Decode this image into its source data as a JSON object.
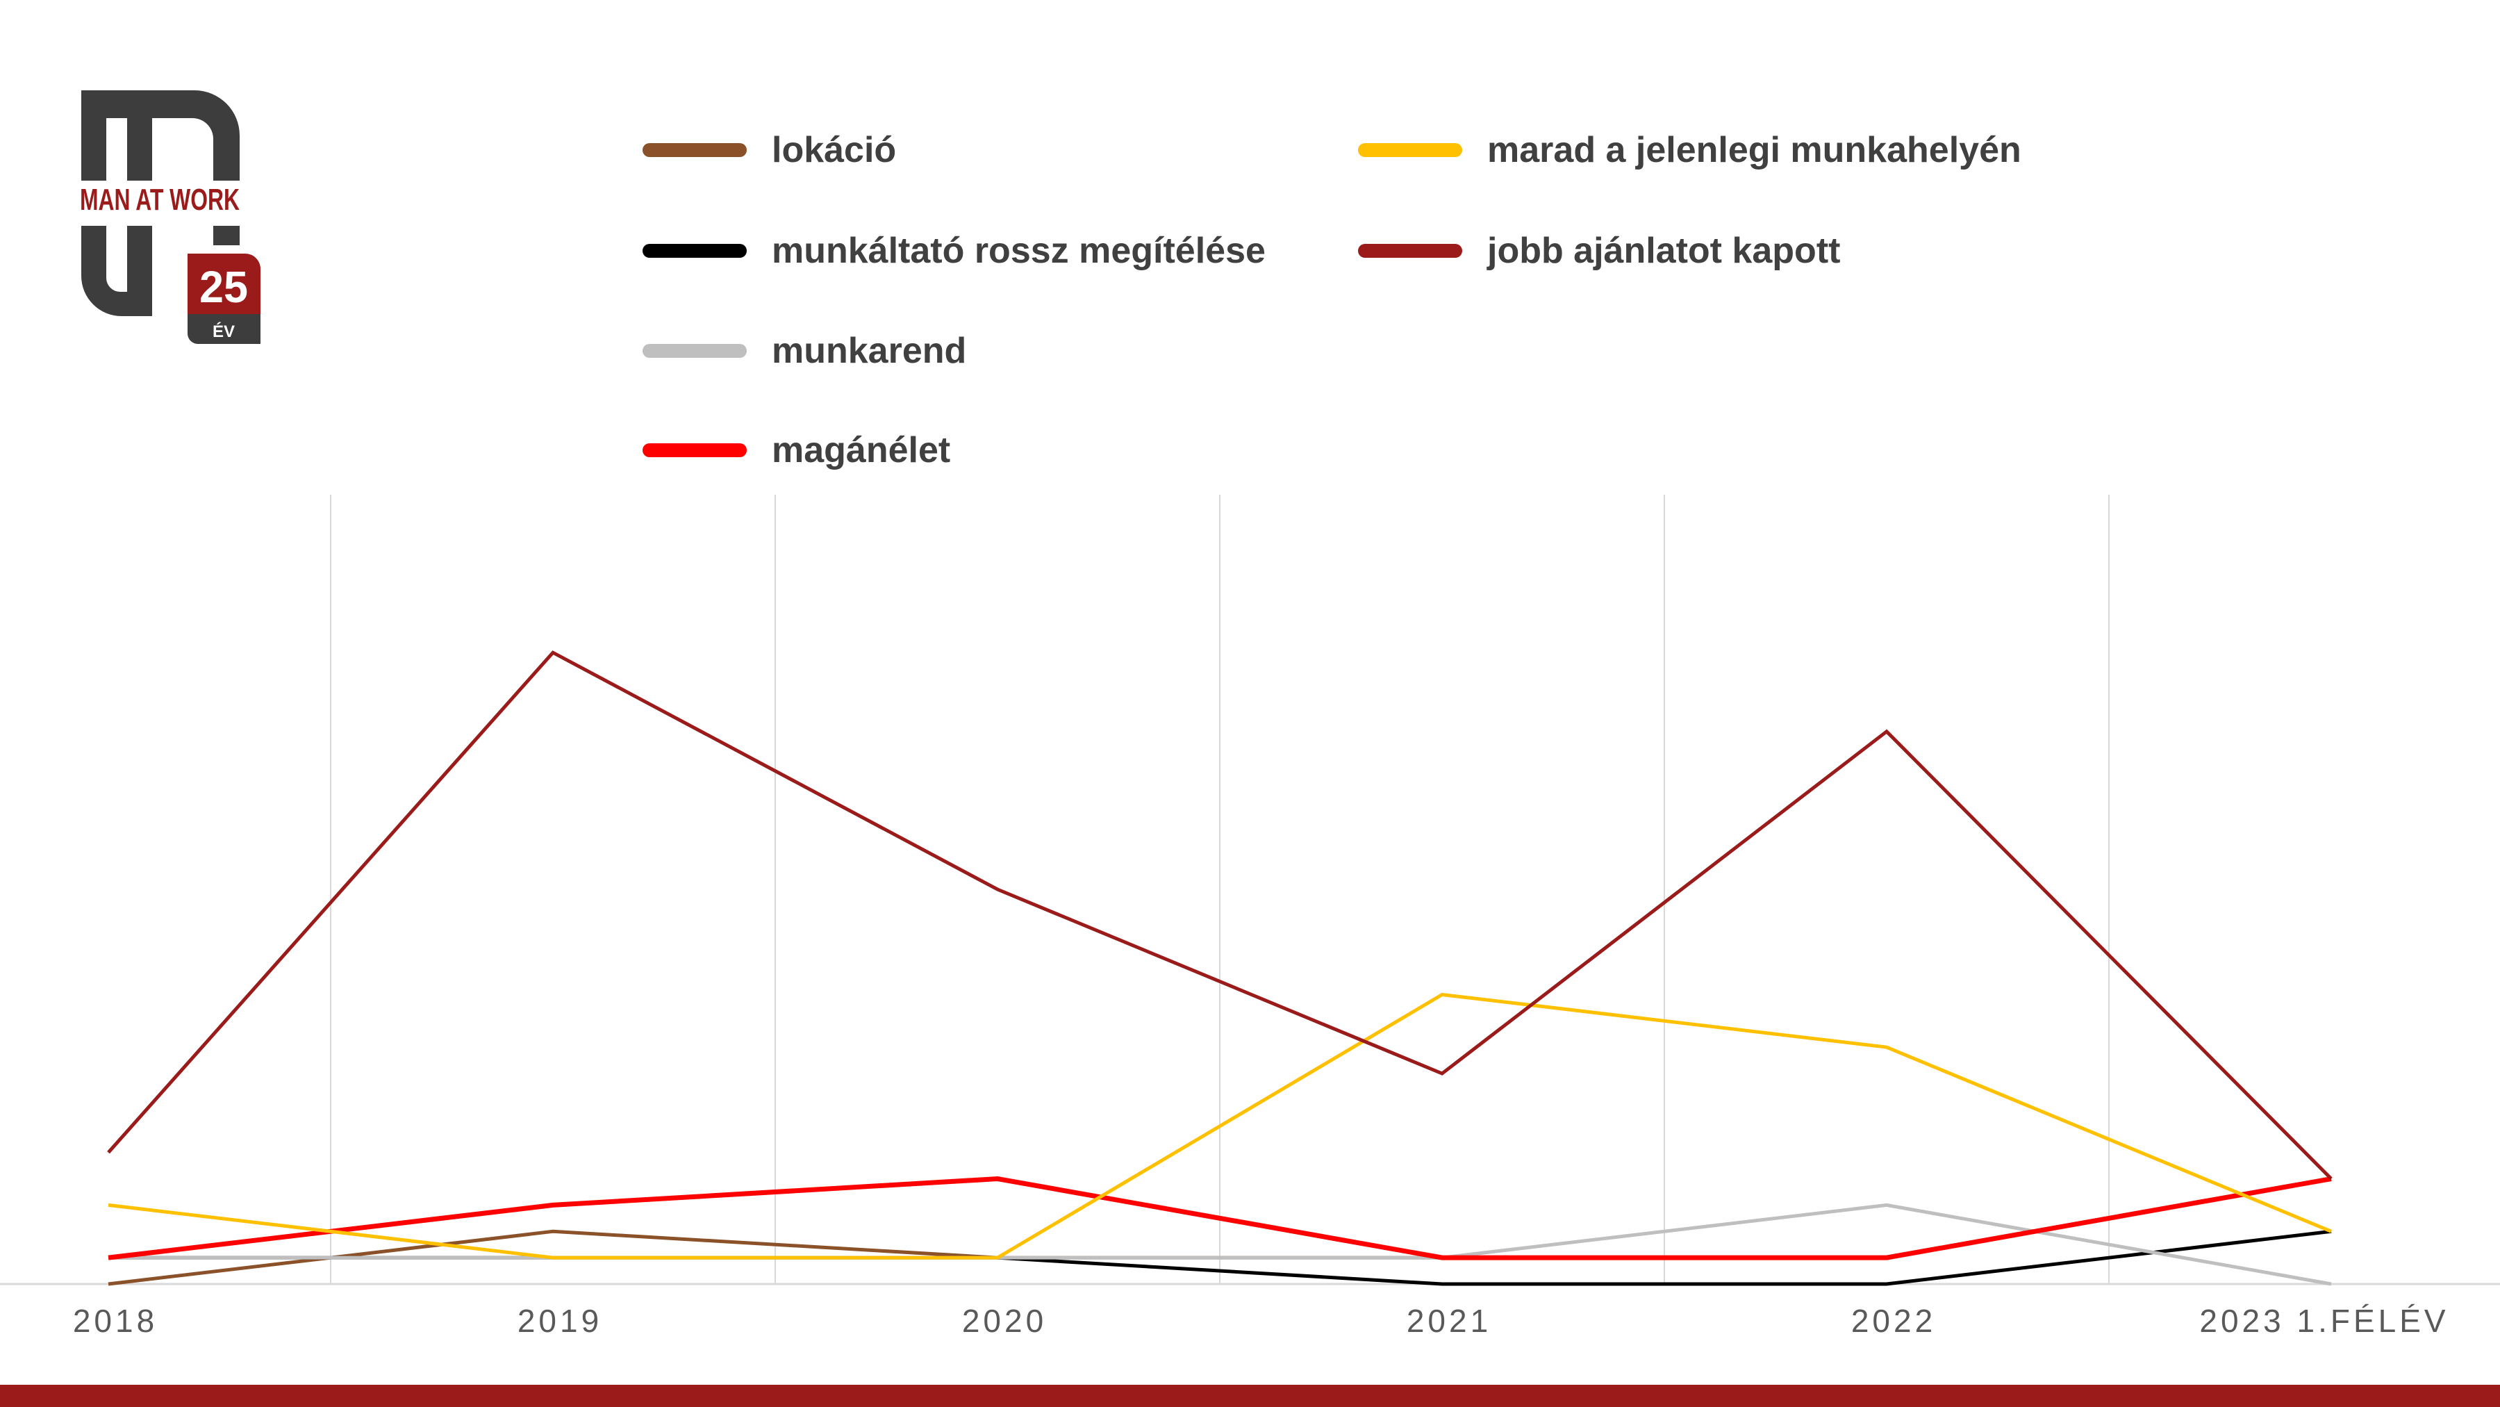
{
  "logo": {
    "text": "MAN AT WORK",
    "badge_number": "25",
    "badge_unit": "ÉV"
  },
  "chart_data": {
    "type": "line",
    "title": "",
    "xlabel": "",
    "ylabel": "",
    "categories": [
      "2018",
      "2019",
      "2020",
      "2021",
      "2022",
      "2023 1.FÉLÉV"
    ],
    "ylim": [
      0,
      30
    ],
    "grid": "vertical",
    "legend_placement": "top",
    "series": [
      {
        "name": "lokáció",
        "color": "#8B5128",
        "values": [
          0,
          2,
          1,
          1,
          1,
          null
        ]
      },
      {
        "name": "munkáltató rossz megítélése",
        "color": "#000000",
        "values": [
          1,
          1,
          1,
          0,
          0,
          2
        ]
      },
      {
        "name": "munkarend",
        "color": "#BFBFBF",
        "values": [
          1,
          1,
          1,
          1,
          3,
          0
        ]
      },
      {
        "name": "magánélet",
        "color": "#FF0000",
        "values": [
          1,
          3,
          4,
          1,
          1,
          4
        ]
      },
      {
        "name": "marad a jelenlegi munkahelyén",
        "color": "#FFC000",
        "values": [
          3,
          1,
          1,
          11,
          9,
          2
        ]
      },
      {
        "name": "jobb ajánlatot kapott",
        "color": "#9B1B1B",
        "values": [
          5,
          24,
          15,
          8,
          21,
          4
        ]
      }
    ]
  }
}
